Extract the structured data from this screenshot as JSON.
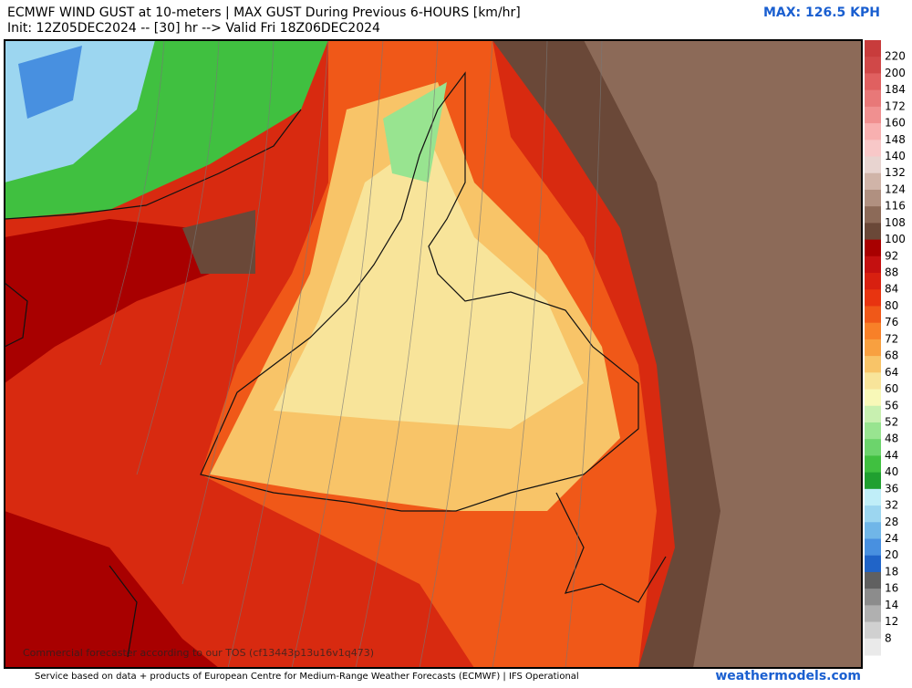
{
  "header": {
    "title": "ECMWF WIND GUST at 10-meters | MAX GUST During Previous 6-HOURS [km/hr]",
    "init": "Init: 12Z05DEC2024 -- [30] hr --> Valid Fri 18Z06DEC2024",
    "max": "MAX: 126.5 KPH"
  },
  "watermark": "Commercial forecaster according to our TOS (cf13443p13u16v1q473)",
  "footer": {
    "credit": "Service based on data + products of European Centre for Medium-Range Weather Forecasts (ECMWF) | IFS Operational",
    "site": "weathermodels.com"
  },
  "colorbar": {
    "labels": [
      220,
      200,
      184,
      172,
      160,
      148,
      140,
      132,
      124,
      116,
      108,
      100,
      92,
      88,
      84,
      80,
      76,
      72,
      68,
      64,
      60,
      56,
      52,
      48,
      44,
      40,
      36,
      32,
      28,
      24,
      20,
      18,
      16,
      14,
      12,
      8
    ],
    "colors": [
      "#c83c3c",
      "#d04848",
      "#e06060",
      "#e87878",
      "#f09090",
      "#f8b0b0",
      "#f8c8c8",
      "#e8d4d0",
      "#d0b4a8",
      "#b09080",
      "#8c6a58",
      "#6a4838",
      "#a80000",
      "#c41010",
      "#d82010",
      "#e83410",
      "#f05818",
      "#f88028",
      "#f8a040",
      "#f8c468",
      "#f8e49a",
      "#f8f8b8",
      "#c8f0b0",
      "#98e490",
      "#6cd46c",
      "#40c040",
      "#20a030",
      "#c0eef8",
      "#9cd6f0",
      "#70b6e8",
      "#4890e0",
      "#2064c8",
      "#606060",
      "#8c8c8c",
      "#b0b0b0",
      "#d0d0d0",
      "#eaeaea"
    ]
  }
}
